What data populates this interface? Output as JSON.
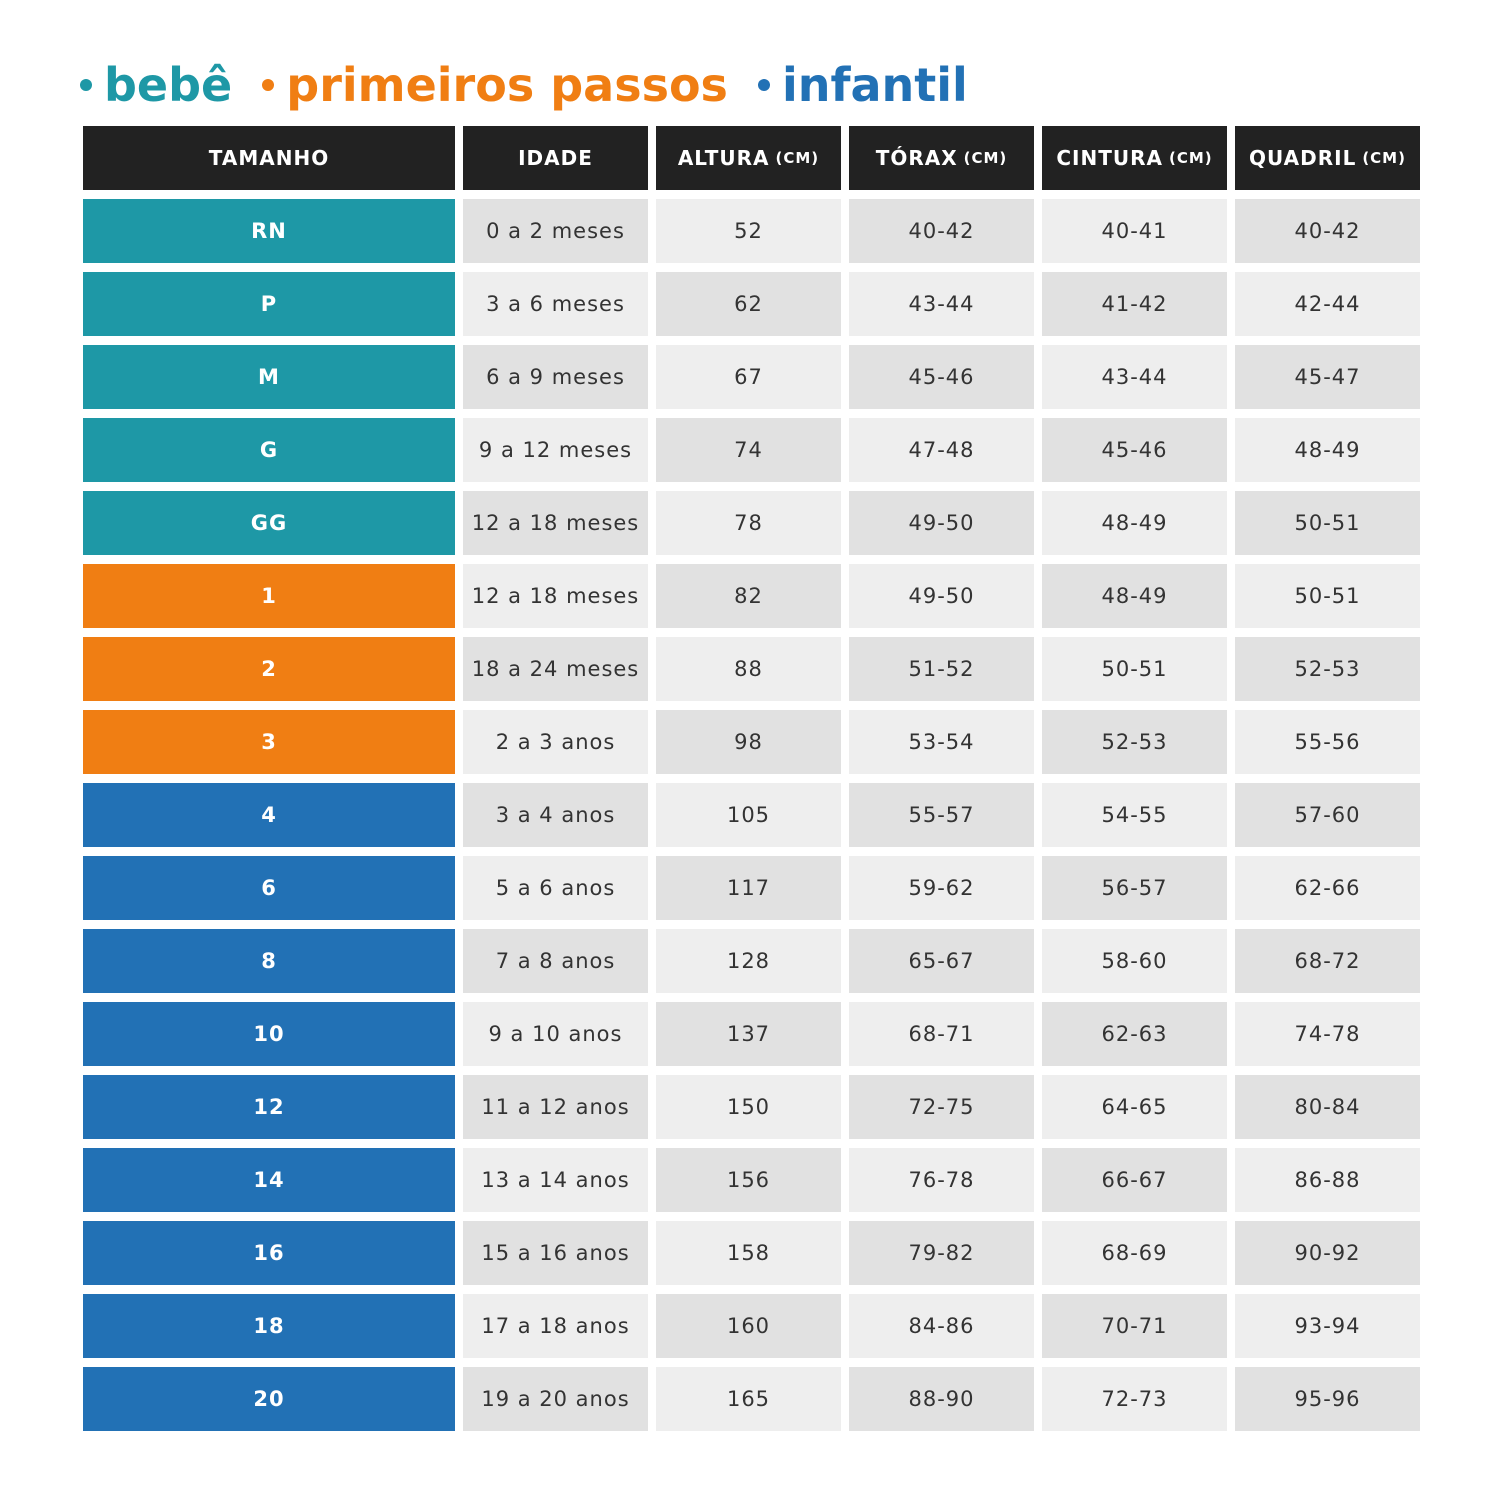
{
  "groups": [
    {
      "label": "bebê",
      "color": "#1e98a6",
      "rows": [
        [
          "RN",
          "0 a 2 meses",
          "52",
          "40-42",
          "40-41",
          "40-42"
        ],
        [
          "P",
          "3 a 6 meses",
          "62",
          "43-44",
          "41-42",
          "42-44"
        ],
        [
          "M",
          "6 a 9 meses",
          "67",
          "45-46",
          "43-44",
          "45-47"
        ],
        [
          "G",
          "9 a 12 meses",
          "74",
          "47-48",
          "45-46",
          "48-49"
        ],
        [
          "GG",
          "12 a 18 meses",
          "78",
          "49-50",
          "48-49",
          "50-51"
        ]
      ]
    },
    {
      "label": "primeiros passos",
      "color": "#f07e13",
      "rows": [
        [
          "1",
          "12 a 18 meses",
          "82",
          "49-50",
          "48-49",
          "50-51"
        ],
        [
          "2",
          "18 a 24 meses",
          "88",
          "51-52",
          "50-51",
          "52-53"
        ],
        [
          "3",
          "2 a 3 anos",
          "98",
          "53-54",
          "52-53",
          "55-56"
        ]
      ]
    },
    {
      "label": "infantil",
      "color": "#2271b5",
      "rows": [
        [
          "4",
          "3 a 4 anos",
          "105",
          "55-57",
          "54-55",
          "57-60"
        ],
        [
          "6",
          "5 a 6 anos",
          "117",
          "59-62",
          "56-57",
          "62-66"
        ],
        [
          "8",
          "7 a 8 anos",
          "128",
          "65-67",
          "58-60",
          "68-72"
        ],
        [
          "10",
          "9 a 10 anos",
          "137",
          "68-71",
          "62-63",
          "74-78"
        ],
        [
          "12",
          "11 a 12 anos",
          "150",
          "72-75",
          "64-65",
          "80-84"
        ],
        [
          "14",
          "13 a 14 anos",
          "156",
          "76-78",
          "66-67",
          "86-88"
        ],
        [
          "16",
          "15 a 16 anos",
          "158",
          "79-82",
          "68-69",
          "90-92"
        ],
        [
          "18",
          "17 a 18 anos",
          "160",
          "84-86",
          "70-71",
          "93-94"
        ],
        [
          "20",
          "19 a 20 anos",
          "165",
          "88-90",
          "72-73",
          "95-96"
        ]
      ]
    }
  ],
  "headers": [
    {
      "label": "TAMANHO"
    },
    {
      "label": "IDADE"
    },
    {
      "label": "ALTURA",
      "unit": "(CM)"
    },
    {
      "label": "TÓRAX",
      "unit": "(CM)"
    },
    {
      "label": "CINTURA",
      "unit": "(CM)"
    },
    {
      "label": "QUADRIL",
      "unit": "(CM)"
    }
  ]
}
